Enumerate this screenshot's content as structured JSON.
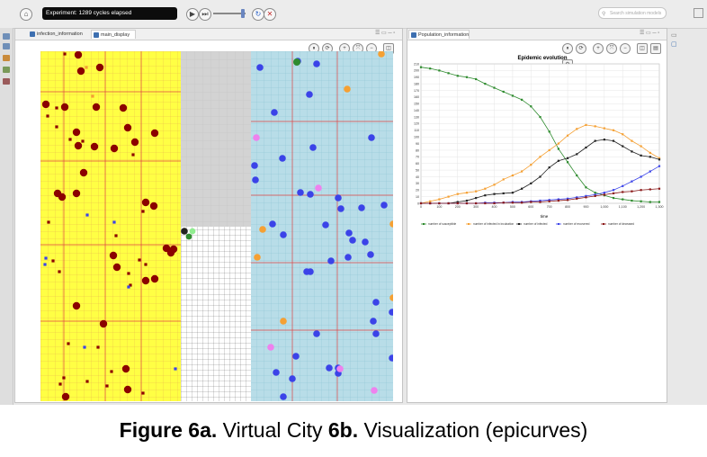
{
  "toolbar": {
    "experiment_status": "Experiment: 1289 cycles elapsed",
    "search_placeholder": "Search simulation models"
  },
  "left_panel": {
    "tabs": [
      {
        "label": "infection_information"
      },
      {
        "label": "main_display"
      }
    ]
  },
  "right_panel": {
    "tabs": [
      {
        "label": "Population_information"
      }
    ]
  },
  "colors": {
    "susceptible": "#2e8b2e",
    "infected_incubation": "#f5a033",
    "infected": "#222222",
    "recovered": "#3b43e8",
    "deceased": "#8b1a1a",
    "yellow_zone": "#ffff44",
    "blue_zone": "#b8dde8",
    "dark_red_agent": "#8b0000"
  },
  "chart_data": {
    "type": "line",
    "title": "Epidemic evolution",
    "xlabel": "time",
    "ylabel": "",
    "xlim": [
      0,
      1300
    ],
    "ylim": [
      0,
      210
    ],
    "x_ticks": [
      "0",
      "100",
      "200",
      "300",
      "400",
      "500",
      "600",
      "700",
      "800",
      "900",
      "1,000",
      "1,100",
      "1,200",
      "1,300"
    ],
    "y_ticks": [
      "0",
      "10",
      "20",
      "30",
      "40",
      "50",
      "60",
      "70",
      "80",
      "90",
      "100",
      "110",
      "120",
      "130",
      "140",
      "150",
      "160",
      "170",
      "180",
      "190",
      "200",
      "210"
    ],
    "x": [
      0,
      50,
      100,
      150,
      200,
      250,
      300,
      350,
      400,
      450,
      500,
      550,
      600,
      650,
      700,
      750,
      800,
      850,
      900,
      950,
      1000,
      1050,
      1100,
      1150,
      1200,
      1250,
      1300
    ],
    "series": [
      {
        "name": "number of susceptible",
        "color": "#2e8b2e",
        "values": [
          205,
          203,
          200,
          196,
          192,
          190,
          187,
          180,
          174,
          168,
          162,
          156,
          146,
          130,
          108,
          82,
          62,
          42,
          24,
          16,
          12,
          8,
          6,
          4,
          3,
          2,
          2
        ]
      },
      {
        "name": "number of infected in incubation",
        "color": "#f5a033",
        "values": [
          0,
          3,
          6,
          10,
          14,
          16,
          18,
          22,
          28,
          36,
          42,
          48,
          58,
          70,
          80,
          90,
          102,
          112,
          118,
          116,
          113,
          110,
          104,
          94,
          86,
          76,
          68
        ]
      },
      {
        "name": "number of infected",
        "color": "#222222",
        "values": [
          0,
          0,
          0,
          0,
          2,
          4,
          8,
          12,
          14,
          15,
          16,
          22,
          30,
          40,
          54,
          64,
          68,
          74,
          84,
          94,
          96,
          94,
          86,
          78,
          72,
          70,
          66
        ]
      },
      {
        "name": "number of recovered",
        "color": "#3b43e8",
        "values": [
          0,
          0,
          0,
          0,
          0,
          0,
          0,
          1,
          1,
          1,
          2,
          2,
          3,
          4,
          5,
          6,
          7,
          9,
          11,
          13,
          16,
          20,
          26,
          33,
          40,
          48,
          56
        ]
      },
      {
        "name": "number of deceased",
        "color": "#8b1a1a",
        "values": [
          0,
          0,
          0,
          0,
          0,
          0,
          0,
          0,
          0,
          1,
          1,
          1,
          2,
          2,
          3,
          4,
          5,
          7,
          9,
          11,
          13,
          15,
          17,
          18,
          20,
          21,
          22
        ]
      }
    ]
  },
  "caption": {
    "fig_a_label": "Figure 6a.",
    "fig_a_text": " Virtual City ",
    "fig_b_label": "6b.",
    "fig_b_text": " Visualization (epicurves)"
  }
}
